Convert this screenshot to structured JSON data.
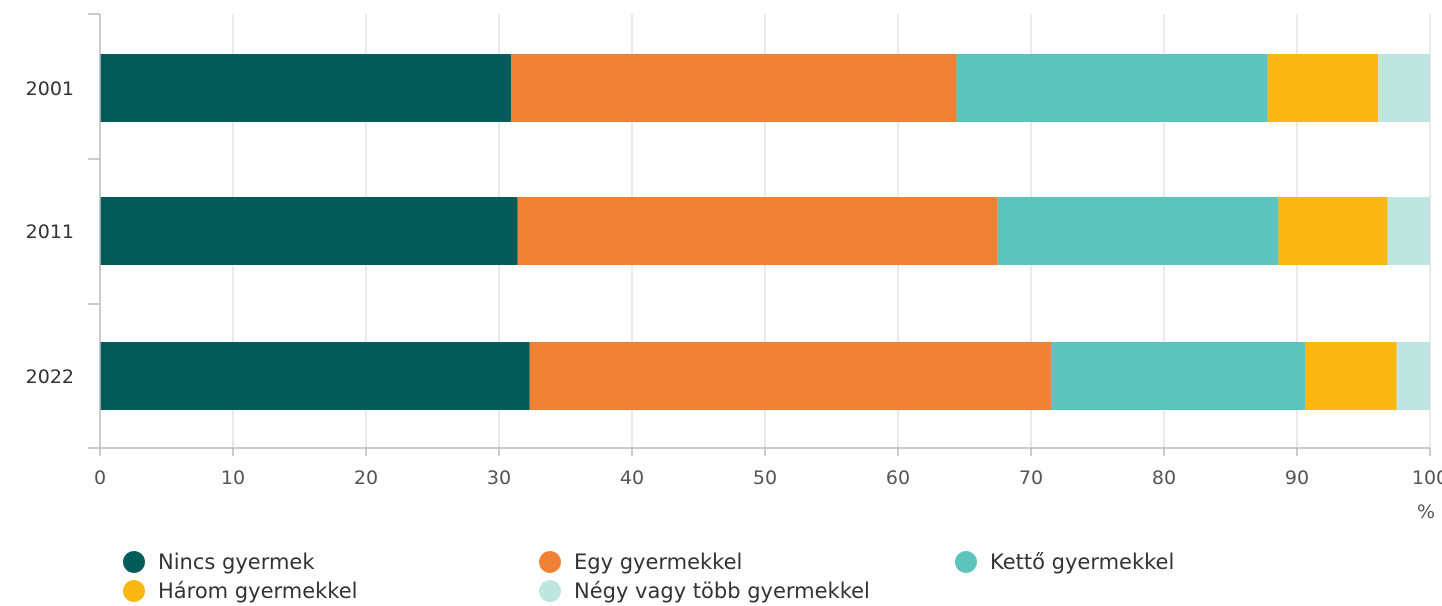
{
  "chart_data": {
    "type": "bar",
    "orientation": "horizontal",
    "stacked": true,
    "categories": [
      "2001",
      "2011",
      "2022"
    ],
    "series": [
      {
        "name": "Nincs gyermek",
        "color": "#035c5a",
        "values": [
          30.9,
          31.4,
          32.3
        ]
      },
      {
        "name": "Egy gyermekkel",
        "color": "#f18235",
        "values": [
          33.5,
          36.1,
          39.2
        ]
      },
      {
        "name": "Kettő gyermekkel",
        "color": "#5cc4bd",
        "values": [
          23.4,
          21.1,
          19.1
        ]
      },
      {
        "name": "Három gyermekkel",
        "color": "#fbb812",
        "values": [
          8.3,
          8.2,
          6.9
        ]
      },
      {
        "name": "Négy vagy több gyermekkel",
        "color": "#bfe5e1",
        "values": [
          3.9,
          3.2,
          2.5
        ]
      }
    ],
    "x_ticks": [
      "0",
      "10",
      "20",
      "30",
      "40",
      "50",
      "60",
      "70",
      "80",
      "90",
      "100"
    ],
    "xlim": [
      0,
      100
    ],
    "x_unit": "%",
    "grid": "vertical",
    "legend_position": "bottom"
  }
}
